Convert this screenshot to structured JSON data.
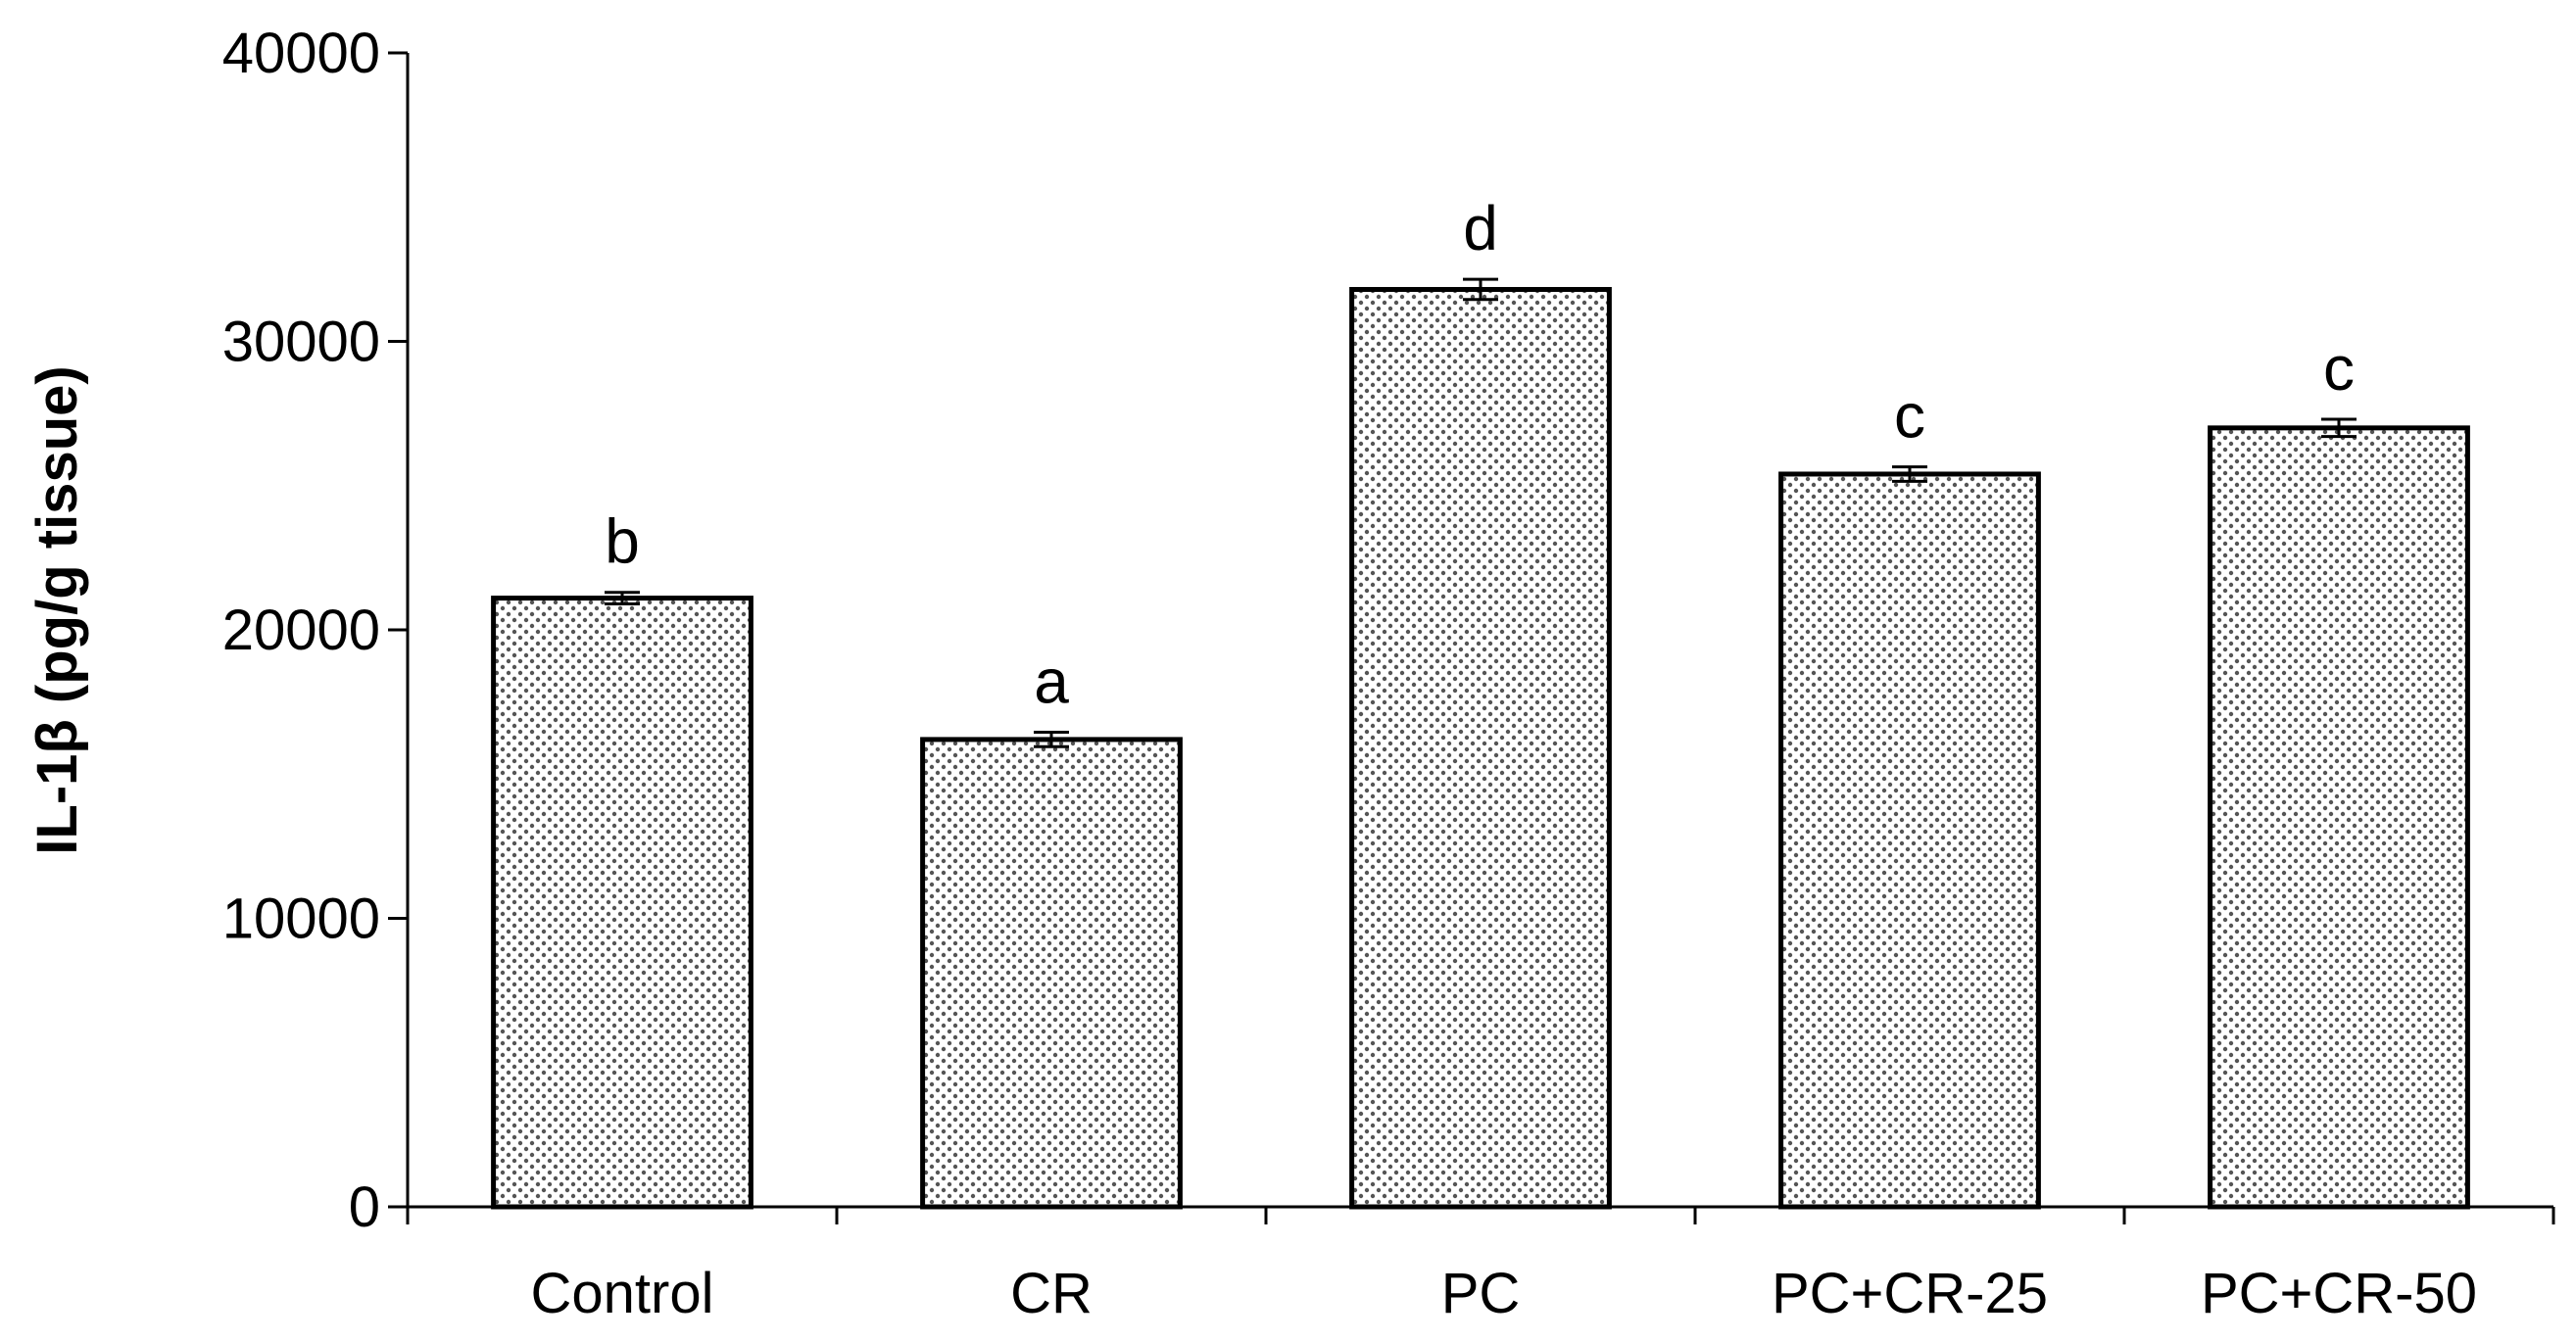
{
  "chart_data": {
    "type": "bar",
    "title": "",
    "xlabel": "",
    "ylabel": "IL-1β (pg/g tissue)",
    "ylim": [
      0,
      40000
    ],
    "yticks": [
      0,
      10000,
      20000,
      30000,
      40000
    ],
    "categories": [
      "Control",
      "CR",
      "PC",
      "PC+CR-25",
      "PC+CR-50"
    ],
    "values": [
      21100,
      16200,
      31800,
      25400,
      27000
    ],
    "errors": [
      200,
      250,
      350,
      250,
      300
    ],
    "significance": [
      "b",
      "a",
      "d",
      "c",
      "c"
    ],
    "bar_fill": "#ffffff",
    "bar_dot_color": "#555555",
    "bar_stroke": "#000000",
    "grid": false
  }
}
